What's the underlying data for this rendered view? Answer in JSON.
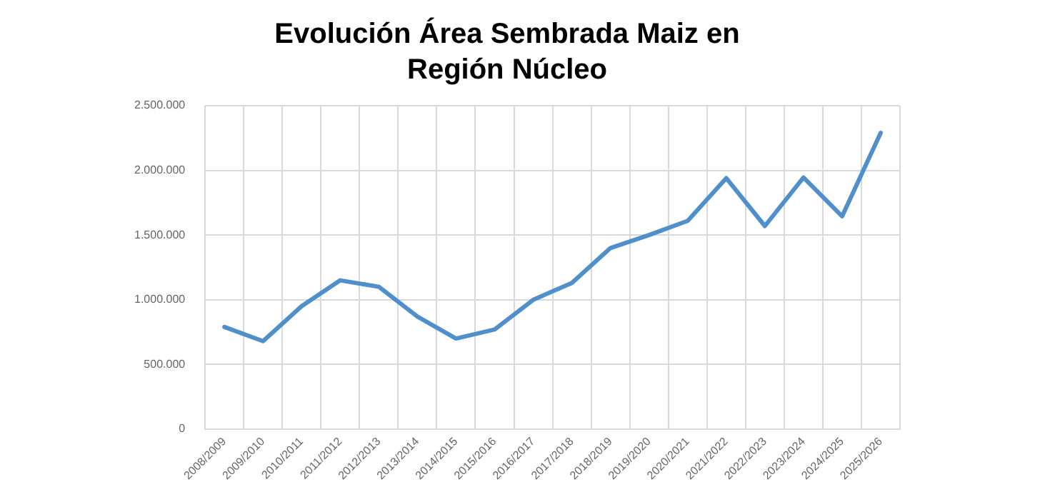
{
  "chart_data": {
    "type": "line",
    "title": [
      "Evolución Área Sembrada Maiz en",
      "Región Núcleo"
    ],
    "categories": [
      "2008/2009",
      "2009/2010",
      "2010/2011",
      "2011/2012",
      "2012/2013",
      "2013/2014",
      "2014/2015",
      "2015/2016",
      "2016/2017",
      "2017/2018",
      "2018/2019",
      "2019/2020",
      "2020/2021",
      "2021/2022",
      "2022/2023",
      "2023/2024",
      "2024/2025",
      "2025/2026"
    ],
    "series": [
      {
        "color": "#4f8fcc",
        "values": [
          790000,
          680000,
          950000,
          1150000,
          1100000,
          870000,
          700000,
          770000,
          1000000,
          1130000,
          1400000,
          1500000,
          1610000,
          1940000,
          1570000,
          1945000,
          1645000,
          2290000
        ]
      }
    ],
    "ylim": [
      0,
      2500000
    ],
    "yticks": [
      {
        "value": 0,
        "label": "0"
      },
      {
        "value": 500000,
        "label": "500.000"
      },
      {
        "value": 1000000,
        "label": "1.000.000"
      },
      {
        "value": 1500000,
        "label": "1.500.000"
      },
      {
        "value": 2000000,
        "label": "2.000.000"
      },
      {
        "value": 2500000,
        "label": "2.500.000"
      }
    ],
    "grid": true,
    "legend": false,
    "marker": "none",
    "line_style": "solid"
  }
}
